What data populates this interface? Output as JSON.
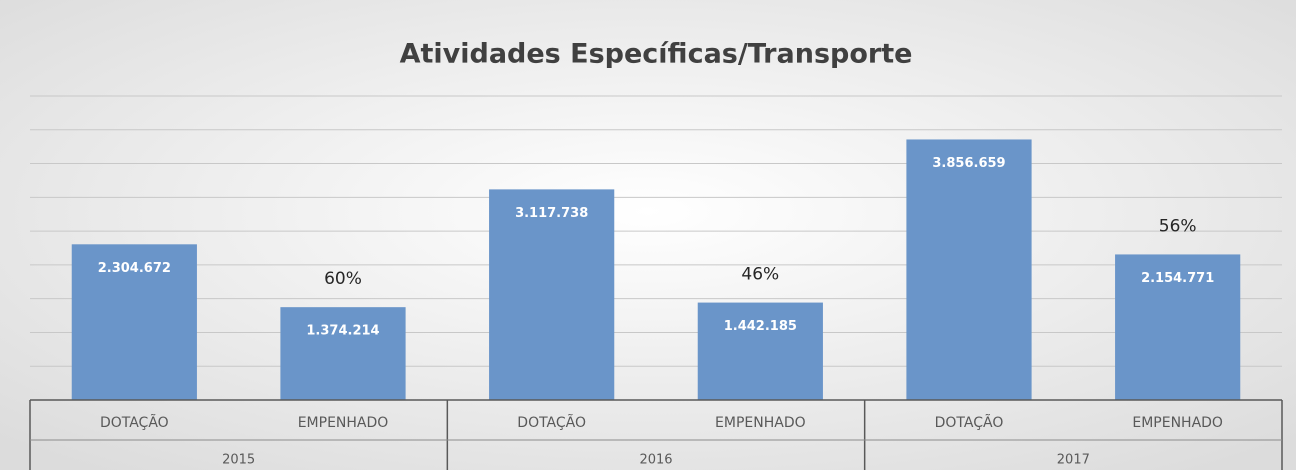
{
  "chart_data": {
    "type": "bar",
    "title": "Atividades Específicas/Transporte",
    "categories": [
      "DOTAÇÃO",
      "EMPENHADO",
      "DOTAÇÃO",
      "EMPENHADO",
      "DOTAÇÃO",
      "EMPENHADO"
    ],
    "groups": [
      "2015",
      "2016",
      "2017"
    ],
    "values": [
      2304672,
      1374214,
      3117738,
      1442185,
      3856659,
      2154771
    ],
    "value_labels": [
      "2.304.672",
      "1.374.214",
      "3.117.738",
      "1.442.185",
      "3.856.659",
      "2.154.771"
    ],
    "percent_labels": [
      "60%",
      "46%",
      "56%"
    ],
    "color": "#6a95c9",
    "ylim": [
      0,
      4500000
    ],
    "yticks": [
      0,
      500000,
      1000000,
      1500000,
      2000000,
      2500000,
      3000000,
      3500000,
      4000000,
      4500000
    ],
    "grid": true
  }
}
